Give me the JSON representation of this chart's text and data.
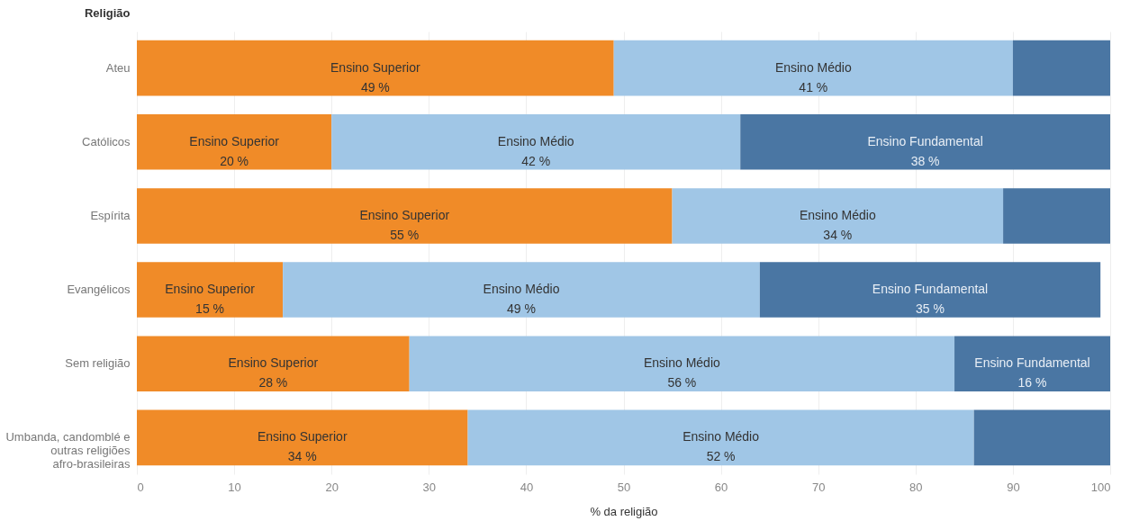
{
  "chart_data": {
    "type": "bar",
    "orientation": "horizontal",
    "stacked": true,
    "categories": [
      "Ateu",
      "Católicos",
      "Espírita",
      "Evangélicos",
      "Sem religião",
      "Umbanda, candomblé e outras religiões afro-brasileiras"
    ],
    "series": [
      {
        "name": "Ensino Superior",
        "color": "#f08b28",
        "values": [
          49,
          20,
          55,
          15,
          28,
          34
        ],
        "value_labels": [
          "49 %",
          "20 %",
          "55 %",
          "15 %",
          "28 %",
          "34 %"
        ]
      },
      {
        "name": "Ensino Médio",
        "color": "#a0c6e6",
        "values": [
          41,
          42,
          34,
          49,
          56,
          52
        ],
        "value_labels": [
          "41 %",
          "42 %",
          "34 %",
          "49 %",
          "56 %",
          "52 %"
        ]
      },
      {
        "name": "Ensino Fundamental",
        "color": "#4a76a3",
        "values": [
          10,
          38,
          11,
          35,
          16,
          14
        ],
        "value_labels": [
          null,
          "38 %",
          null,
          "35 %",
          "16 %",
          null
        ]
      }
    ],
    "xlabel": "% da religião",
    "ylabel": "Religião",
    "xlim": [
      0,
      100
    ],
    "xticks": [
      0,
      10,
      20,
      30,
      40,
      50,
      60,
      70,
      80,
      90,
      100
    ],
    "grid": "x"
  }
}
